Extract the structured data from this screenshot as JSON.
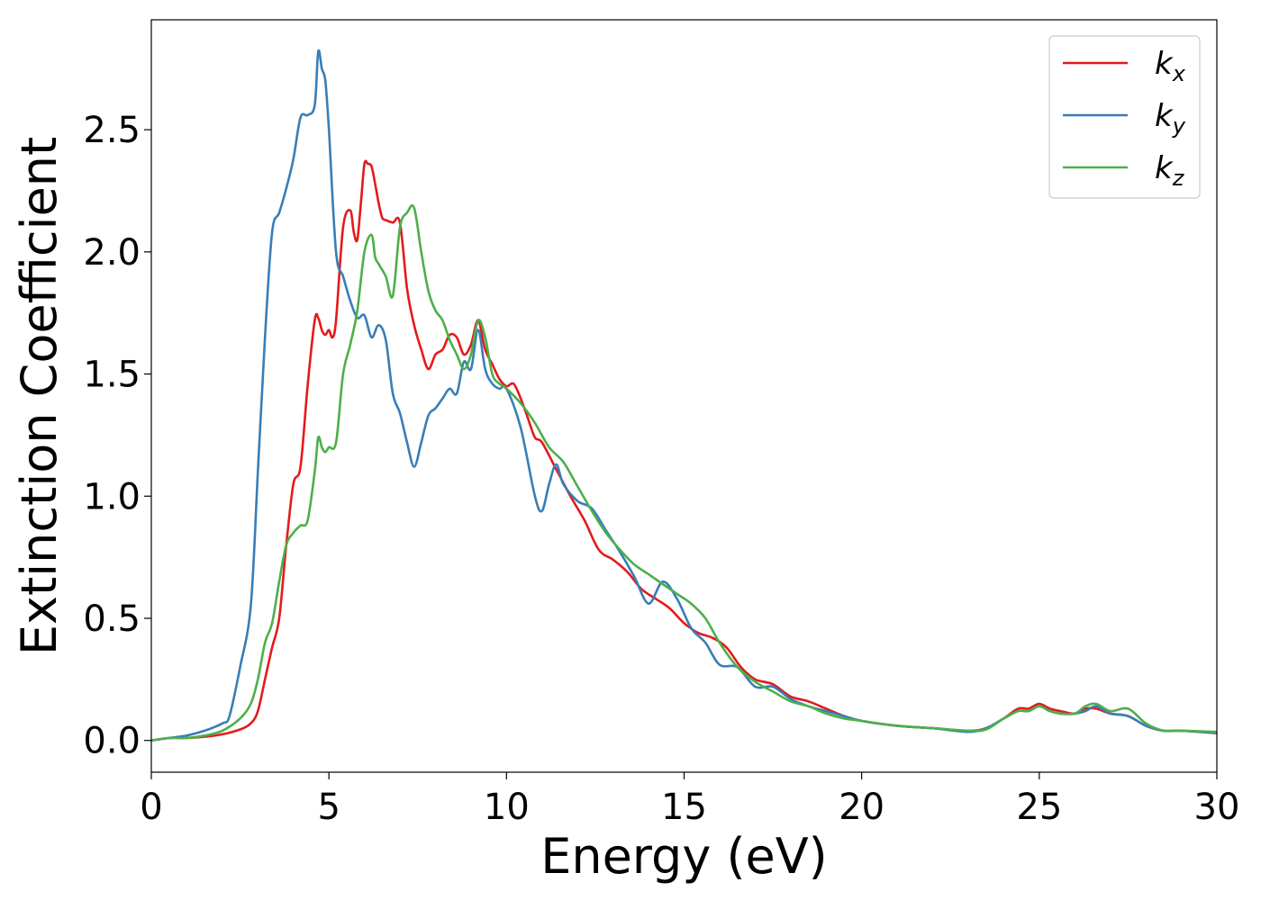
{
  "chart_data": {
    "type": "line",
    "xlabel": "Energy (eV)",
    "ylabel": "Extinction Coefficient",
    "xlim": [
      0,
      30
    ],
    "ylim": [
      -0.13,
      2.95
    ],
    "xticks": [
      0,
      5,
      10,
      15,
      20,
      25,
      30
    ],
    "xtick_labels": [
      "0",
      "5",
      "10",
      "15",
      "20",
      "25",
      "30"
    ],
    "yticks": [
      0.0,
      0.5,
      1.0,
      1.5,
      2.0,
      2.5
    ],
    "ytick_labels": [
      "0.0",
      "0.5",
      "1.0",
      "1.5",
      "2.0",
      "2.5"
    ],
    "grid": false,
    "legend_position": "top-right",
    "series": [
      {
        "name": "k",
        "subscript": "x",
        "color": "#e41a1c",
        "x": [
          0,
          0.5,
          1,
          1.5,
          2,
          2.5,
          2.8,
          3.0,
          3.2,
          3.4,
          3.6,
          3.8,
          4.0,
          4.2,
          4.4,
          4.6,
          4.7,
          4.8,
          4.9,
          5.0,
          5.1,
          5.2,
          5.4,
          5.6,
          5.7,
          5.8,
          5.9,
          6.0,
          6.1,
          6.2,
          6.3,
          6.4,
          6.5,
          6.6,
          6.8,
          7.0,
          7.2,
          7.4,
          7.6,
          7.8,
          8.0,
          8.2,
          8.4,
          8.6,
          8.8,
          9.0,
          9.2,
          9.4,
          9.6,
          9.8,
          10.0,
          10.2,
          10.4,
          10.6,
          10.8,
          11.0,
          11.4,
          11.8,
          12.2,
          12.6,
          13.0,
          13.4,
          13.8,
          14.2,
          14.6,
          15.0,
          15.4,
          15.8,
          16.2,
          16.6,
          17.0,
          17.5,
          18.0,
          18.5,
          19.0,
          19.5,
          20.0,
          21.0,
          22.0,
          23.0,
          23.5,
          24.0,
          24.4,
          24.7,
          25.0,
          25.3,
          25.6,
          26.0,
          26.3,
          26.6,
          27.0,
          27.5,
          28.0,
          28.5,
          29.0,
          30.0
        ],
        "y": [
          0.0,
          0.01,
          0.01,
          0.015,
          0.025,
          0.045,
          0.07,
          0.12,
          0.25,
          0.38,
          0.5,
          0.8,
          1.05,
          1.12,
          1.45,
          1.72,
          1.73,
          1.68,
          1.66,
          1.68,
          1.65,
          1.72,
          2.1,
          2.17,
          2.08,
          2.05,
          2.2,
          2.36,
          2.36,
          2.35,
          2.28,
          2.2,
          2.14,
          2.13,
          2.12,
          2.12,
          1.85,
          1.7,
          1.6,
          1.52,
          1.58,
          1.6,
          1.66,
          1.65,
          1.58,
          1.62,
          1.72,
          1.6,
          1.54,
          1.48,
          1.45,
          1.46,
          1.4,
          1.32,
          1.24,
          1.22,
          1.11,
          1.0,
          0.9,
          0.78,
          0.74,
          0.69,
          0.62,
          0.58,
          0.54,
          0.48,
          0.44,
          0.42,
          0.38,
          0.3,
          0.25,
          0.23,
          0.18,
          0.16,
          0.13,
          0.1,
          0.08,
          0.06,
          0.05,
          0.04,
          0.05,
          0.09,
          0.13,
          0.13,
          0.15,
          0.13,
          0.12,
          0.11,
          0.13,
          0.13,
          0.11,
          0.1,
          0.06,
          0.04,
          0.04,
          0.03
        ]
      },
      {
        "name": "k",
        "subscript": "y",
        "color": "#377eb8",
        "x": [
          0,
          0.5,
          1,
          1.5,
          2,
          2.2,
          2.5,
          2.8,
          3.0,
          3.2,
          3.4,
          3.6,
          3.8,
          4.0,
          4.2,
          4.4,
          4.6,
          4.7,
          4.8,
          4.9,
          5.0,
          5.2,
          5.4,
          5.6,
          5.8,
          6.0,
          6.2,
          6.4,
          6.6,
          6.8,
          7.0,
          7.2,
          7.4,
          7.6,
          7.8,
          8.0,
          8.2,
          8.4,
          8.6,
          8.8,
          9.0,
          9.2,
          9.4,
          9.6,
          9.8,
          10.0,
          10.4,
          10.8,
          11.0,
          11.2,
          11.4,
          11.6,
          12.0,
          12.4,
          12.8,
          13.2,
          13.6,
          14.0,
          14.4,
          14.8,
          15.2,
          15.6,
          16.0,
          16.5,
          17.0,
          17.5,
          18.0,
          18.5,
          19.0,
          19.5,
          20.0,
          21.0,
          22.0,
          23.0,
          23.5,
          24.0,
          24.4,
          24.7,
          25.0,
          25.3,
          25.6,
          26.0,
          26.3,
          26.6,
          27.0,
          27.5,
          28.0,
          28.5,
          29.0,
          30.0
        ],
        "y": [
          0.0,
          0.01,
          0.02,
          0.04,
          0.07,
          0.1,
          0.3,
          0.55,
          1.1,
          1.65,
          2.08,
          2.16,
          2.26,
          2.38,
          2.55,
          2.56,
          2.6,
          2.82,
          2.75,
          2.7,
          2.5,
          2.0,
          1.9,
          1.8,
          1.73,
          1.74,
          1.65,
          1.7,
          1.64,
          1.42,
          1.34,
          1.22,
          1.12,
          1.22,
          1.33,
          1.36,
          1.4,
          1.44,
          1.42,
          1.55,
          1.52,
          1.68,
          1.52,
          1.46,
          1.44,
          1.44,
          1.28,
          1.0,
          0.94,
          1.05,
          1.13,
          1.05,
          0.98,
          0.95,
          0.86,
          0.77,
          0.67,
          0.56,
          0.65,
          0.58,
          0.46,
          0.4,
          0.31,
          0.3,
          0.22,
          0.22,
          0.17,
          0.14,
          0.12,
          0.1,
          0.08,
          0.06,
          0.05,
          0.035,
          0.05,
          0.09,
          0.12,
          0.12,
          0.14,
          0.12,
          0.11,
          0.11,
          0.12,
          0.14,
          0.11,
          0.1,
          0.06,
          0.04,
          0.04,
          0.03
        ]
      },
      {
        "name": "k",
        "subscript": "z",
        "color": "#4daf4a",
        "x": [
          0,
          0.5,
          1,
          1.5,
          2,
          2.5,
          2.8,
          3.0,
          3.2,
          3.4,
          3.6,
          3.8,
          4.0,
          4.2,
          4.4,
          4.6,
          4.7,
          4.8,
          4.9,
          5.0,
          5.2,
          5.4,
          5.6,
          5.8,
          6.0,
          6.2,
          6.3,
          6.4,
          6.6,
          6.8,
          7.0,
          7.2,
          7.4,
          7.6,
          7.8,
          8.0,
          8.2,
          8.4,
          8.6,
          8.8,
          9.0,
          9.2,
          9.4,
          9.6,
          9.8,
          10.0,
          10.4,
          10.8,
          11.2,
          11.6,
          12.0,
          12.4,
          12.8,
          13.2,
          13.6,
          14.0,
          14.4,
          14.8,
          15.2,
          15.6,
          16.0,
          16.5,
          17.0,
          17.5,
          18.0,
          18.5,
          19.0,
          19.5,
          20.0,
          21.0,
          22.0,
          23.0,
          23.5,
          24.0,
          24.4,
          24.7,
          25.0,
          25.3,
          25.6,
          26.0,
          26.3,
          26.6,
          27.0,
          27.5,
          28.0,
          28.5,
          29.0,
          30.0
        ],
        "y": [
          0.0,
          0.01,
          0.01,
          0.02,
          0.04,
          0.09,
          0.15,
          0.25,
          0.4,
          0.48,
          0.65,
          0.8,
          0.85,
          0.88,
          0.9,
          1.1,
          1.24,
          1.2,
          1.18,
          1.2,
          1.22,
          1.5,
          1.62,
          1.76,
          2.0,
          2.07,
          1.98,
          1.95,
          1.9,
          1.82,
          2.1,
          2.16,
          2.18,
          2.0,
          1.84,
          1.76,
          1.72,
          1.64,
          1.58,
          1.52,
          1.58,
          1.72,
          1.65,
          1.5,
          1.46,
          1.44,
          1.38,
          1.3,
          1.2,
          1.14,
          1.04,
          0.94,
          0.85,
          0.78,
          0.72,
          0.68,
          0.64,
          0.6,
          0.56,
          0.5,
          0.4,
          0.3,
          0.24,
          0.2,
          0.16,
          0.14,
          0.11,
          0.09,
          0.08,
          0.06,
          0.05,
          0.04,
          0.045,
          0.09,
          0.12,
          0.12,
          0.14,
          0.12,
          0.11,
          0.11,
          0.14,
          0.15,
          0.12,
          0.13,
          0.07,
          0.04,
          0.04,
          0.035
        ]
      }
    ]
  }
}
